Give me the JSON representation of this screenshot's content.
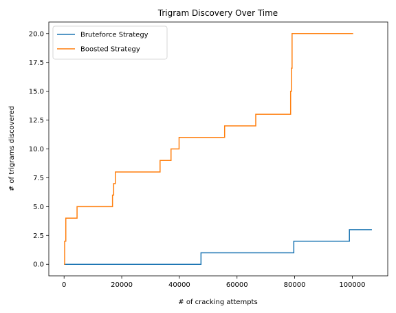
{
  "chart_data": {
    "type": "line",
    "step": "post",
    "title": "Trigram Discovery Over Time",
    "xlabel": "# of cracking attempts",
    "ylabel": "# of trigrams discovered",
    "xlim": [
      -5300,
      112300
    ],
    "ylim": [
      -1.0,
      21.0
    ],
    "xticks": [
      0,
      20000,
      40000,
      60000,
      80000,
      100000
    ],
    "xtick_labels": [
      "0",
      "20000",
      "40000",
      "60000",
      "80000",
      "100000"
    ],
    "yticks": [
      0.0,
      2.5,
      5.0,
      7.5,
      10.0,
      12.5,
      15.0,
      17.5,
      20.0
    ],
    "ytick_labels": [
      "0.0",
      "2.5",
      "5.0",
      "7.5",
      "10.0",
      "12.5",
      "15.0",
      "17.5",
      "20.0"
    ],
    "grid": false,
    "legend_position": "top-left",
    "series": [
      {
        "name": "Bruteforce Strategy",
        "color": "#1f77b4",
        "x": [
          0,
          47500,
          79700,
          99000,
          106800
        ],
        "y": [
          0,
          1,
          2,
          3,
          3
        ]
      },
      {
        "name": "Boosted Strategy",
        "color": "#ff7f0e",
        "x": [
          0,
          200,
          600,
          4500,
          16800,
          17200,
          17800,
          33300,
          37100,
          39900,
          55700,
          66500,
          78600,
          78900,
          79100,
          100300
        ],
        "y": [
          0,
          2,
          4,
          5,
          6,
          7,
          8,
          9,
          10,
          11,
          12,
          13,
          15,
          17,
          20,
          20
        ]
      }
    ]
  }
}
